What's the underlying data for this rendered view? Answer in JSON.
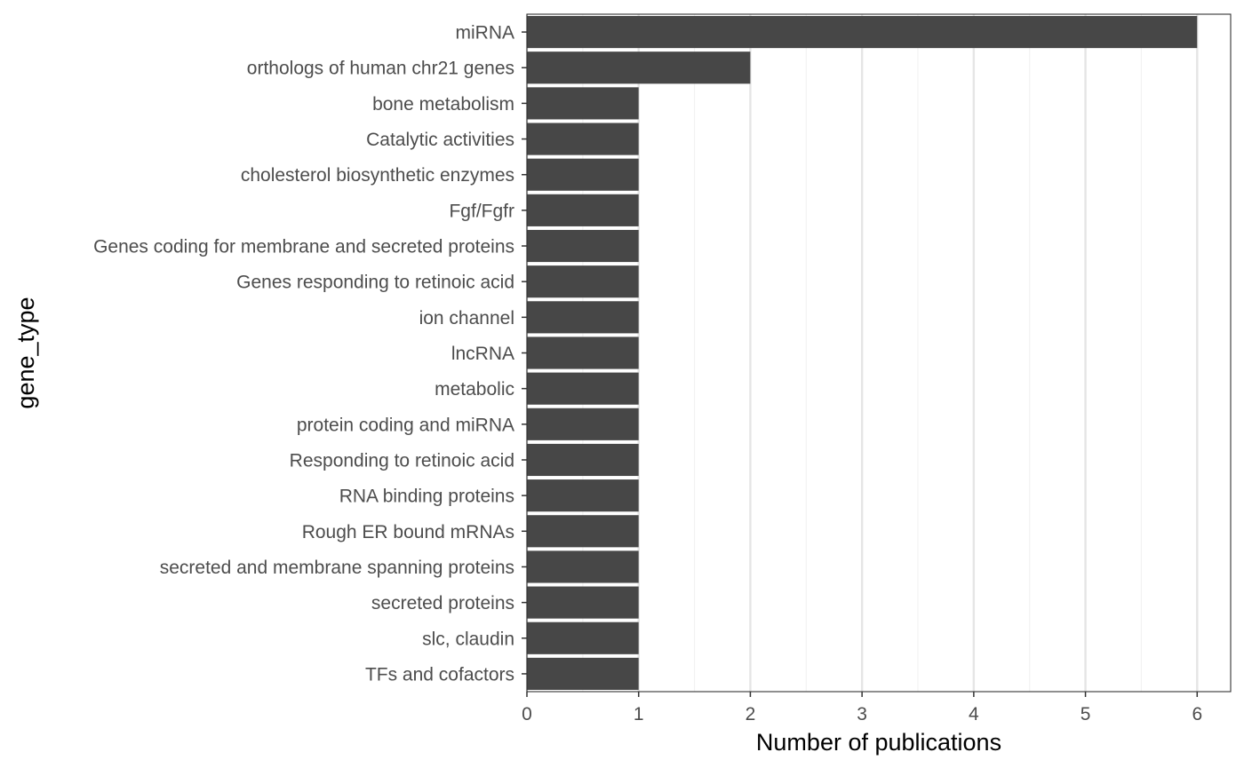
{
  "chart_data": {
    "type": "bar",
    "orientation": "horizontal",
    "categories": [
      "miRNA",
      "orthologs of human chr21 genes",
      "bone metabolism",
      "Catalytic activities",
      "cholesterol biosynthetic enzymes",
      "Fgf/Fgfr",
      "Genes coding for membrane and secreted proteins",
      "Genes responding to retinoic acid",
      "ion channel",
      "lncRNA",
      "metabolic",
      "protein coding and miRNA",
      "Responding to retinoic acid",
      "RNA binding proteins",
      "Rough ER bound mRNAs",
      "secreted and membrane spanning proteins",
      "secreted proteins",
      "slc, claudin",
      "TFs and cofactors"
    ],
    "values": [
      6,
      2,
      1,
      1,
      1,
      1,
      1,
      1,
      1,
      1,
      1,
      1,
      1,
      1,
      1,
      1,
      1,
      1,
      1
    ],
    "xlabel": "Number of publications",
    "ylabel": "gene_type",
    "xlim": [
      0,
      6.3
    ],
    "xticks": [
      0,
      1,
      2,
      3,
      4,
      5,
      6
    ],
    "grid": "vertical major lines",
    "legend": "none",
    "colors": {
      "bar": "#474747",
      "grid": "#e5e5e5",
      "panel_border": "#333333",
      "tick_text": "#4d4d4d",
      "title_text": "#000000"
    }
  }
}
